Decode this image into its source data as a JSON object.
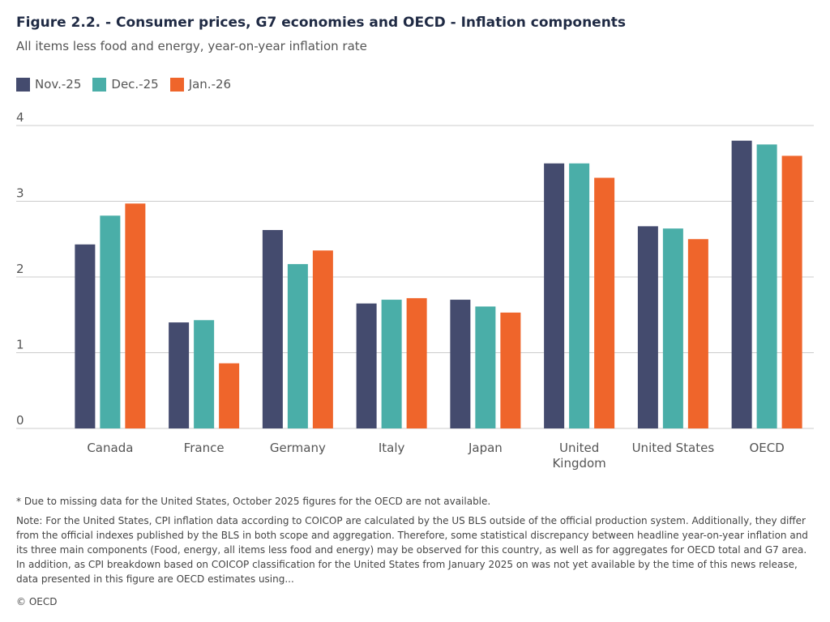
{
  "header": {
    "title": "Figure 2.2. - Consumer prices, G7 economies and OECD - Inflation components",
    "subtitle": "All items less food and energy, year-on-year inflation rate"
  },
  "chart_data": {
    "type": "bar",
    "title": "Figure 2.2. - Consumer prices, G7 economies and OECD - Inflation components",
    "subtitle": "All items less food and energy, year-on-year inflation rate",
    "xlabel": "",
    "ylabel": "",
    "ylim": [
      0,
      4
    ],
    "yticks": [
      "0",
      "1",
      "2",
      "3",
      "4"
    ],
    "grid": true,
    "legend_position": "top-left",
    "categories": [
      "Canada",
      "France",
      "Germany",
      "Italy",
      "Japan",
      "United Kingdom",
      "United States",
      "OECD"
    ],
    "category_lines": [
      [
        "Canada"
      ],
      [
        "France"
      ],
      [
        "Germany"
      ],
      [
        "Italy"
      ],
      [
        "Japan"
      ],
      [
        "United",
        "Kingdom"
      ],
      [
        "United States"
      ],
      [
        "OECD"
      ]
    ],
    "series": [
      {
        "name": "Nov.-25",
        "color": "#444b6e",
        "values": [
          2.43,
          1.4,
          2.62,
          1.65,
          1.7,
          3.5,
          2.67,
          3.8
        ]
      },
      {
        "name": "Dec.-25",
        "color": "#4aaea8",
        "values": [
          2.81,
          1.43,
          2.17,
          1.7,
          1.61,
          3.5,
          2.64,
          3.75
        ]
      },
      {
        "name": "Jan.-26",
        "color": "#ef652b",
        "values": [
          2.97,
          0.86,
          2.35,
          1.72,
          1.53,
          3.31,
          2.5,
          3.6
        ]
      }
    ]
  },
  "footer": {
    "footnote": "* Due to missing data for the United States, October 2025 figures for the OECD are not available.",
    "note": "Note: For the United States, CPI inflation data according to COICOP are calculated by the US BLS outside of the official production system. Additionally, they differ from the official indexes published by the BLS in both scope and aggregation. Therefore, some statistical discrepancy between headline year-on-year inflation and its three main components (Food, energy, all items less food and energy) may be observed for this country, as well as for aggregates for OECD total and G7 area. In addition, as CPI breakdown based on COICOP classification for the United States from January 2025 on was not yet available by the time of this news release, data presented in this figure are OECD estimates using...",
    "copyright": "© OECD"
  }
}
